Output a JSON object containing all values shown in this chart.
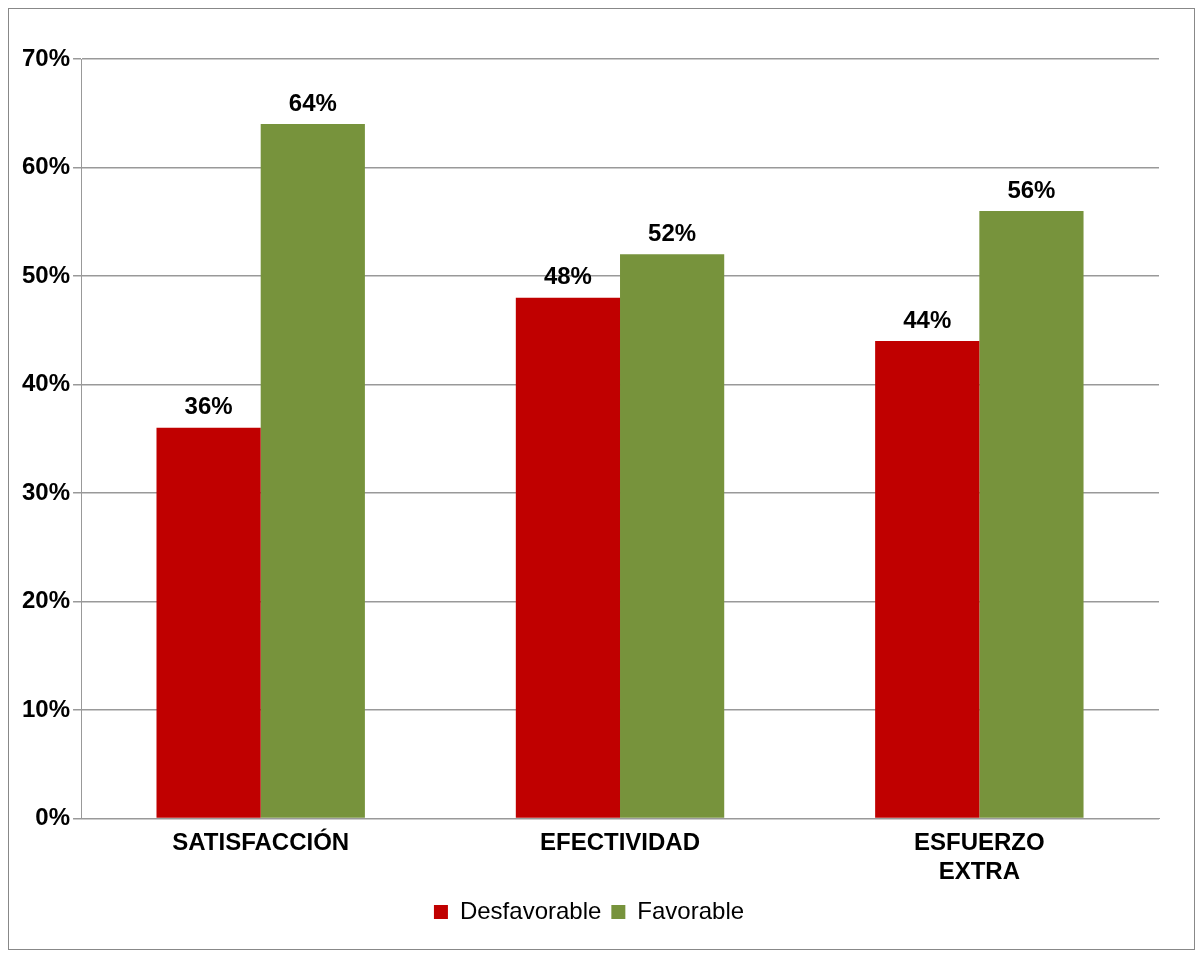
{
  "chart_data": {
    "type": "bar",
    "categories": [
      "SATISFACCIÓN",
      "EFECTIVIDAD",
      "ESFUERZO EXTRA"
    ],
    "series": [
      {
        "name": "Desfavorable",
        "color": "#c00000",
        "values": [
          36,
          48,
          44
        ],
        "value_labels": [
          "36%",
          "48%",
          "44%"
        ]
      },
      {
        "name": "Favorable",
        "color": "#77933c",
        "values": [
          64,
          52,
          56
        ],
        "value_labels": [
          "64%",
          "52%",
          "56%"
        ]
      }
    ],
    "ylim": [
      0,
      70
    ],
    "yticks": [
      {
        "value": 0,
        "label": "0%"
      },
      {
        "value": 10,
        "label": "10%"
      },
      {
        "value": 20,
        "label": "20%"
      },
      {
        "value": 30,
        "label": "30%"
      },
      {
        "value": 40,
        "label": "40%"
      },
      {
        "value": 50,
        "label": "50%"
      },
      {
        "value": 60,
        "label": "60%"
      },
      {
        "value": 70,
        "label": "70%"
      }
    ],
    "grid": "y",
    "legend": "bottom"
  }
}
